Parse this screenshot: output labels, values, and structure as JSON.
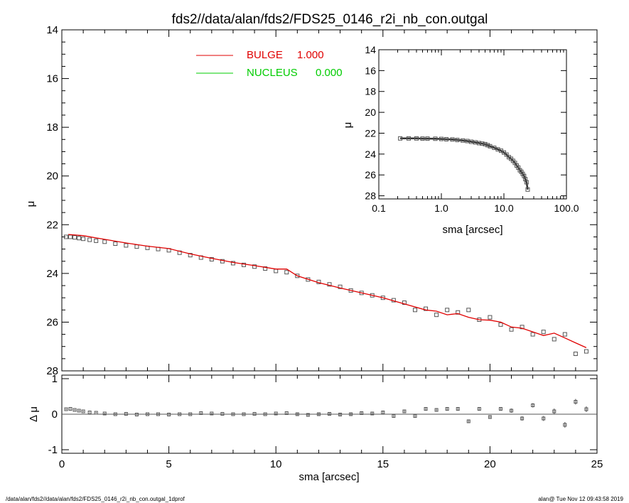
{
  "title": "fds2//data/alan/fds2/FDS25_0146_r2i_nb_con.outgal",
  "footer": {
    "left": "/data/alan/fds2//data/alan/fds2/FDS25_0146_r2i_nb_con.outgal_1dprof",
    "right": "alan@  Tue Nov 12 09:43:58 2019"
  },
  "colors": {
    "bulge": "#e00000",
    "nucleus": "#00cc00",
    "data": "#555555",
    "axis": "#000000"
  },
  "chart_data": [
    {
      "type": "scatter",
      "role": "main-profile",
      "xlim": [
        0,
        25
      ],
      "ylim": [
        28,
        14
      ],
      "ylabel": "μ",
      "xticks": [
        0,
        5,
        10,
        15,
        20,
        25
      ],
      "xtick_labels": [
        "0",
        "5",
        "10",
        "15",
        "20",
        "25"
      ],
      "yticks": [
        14,
        16,
        18,
        20,
        22,
        24,
        26,
        28
      ],
      "ytick_labels": [
        "14",
        "16",
        "18",
        "20",
        "22",
        "24",
        "26",
        "28"
      ],
      "legend": [
        {
          "name": "BULGE",
          "value": "1.000",
          "color": "#e00000"
        },
        {
          "name": "NUCLEUS",
          "value": "0.000",
          "color": "#00cc00"
        }
      ],
      "legend_position": "top-left",
      "series": [
        {
          "name": "data",
          "x": [
            0.2,
            0.4,
            0.6,
            0.8,
            1.0,
            1.3,
            1.6,
            2.0,
            2.5,
            3.0,
            3.5,
            4.0,
            4.5,
            5.0,
            5.5,
            6.0,
            6.5,
            7.0,
            7.5,
            8.0,
            8.5,
            9.0,
            9.5,
            10.0,
            10.5,
            11.0,
            11.5,
            12.0,
            12.5,
            13.0,
            13.5,
            14.0,
            14.5,
            15.0,
            15.5,
            16.0,
            16.5,
            17.0,
            17.5,
            18.0,
            18.5,
            19.0,
            19.5,
            20.0,
            20.5,
            21.0,
            21.5,
            22.0,
            22.5,
            23.0,
            23.5,
            24.0,
            24.5
          ],
          "y": [
            22.5,
            22.5,
            22.52,
            22.55,
            22.58,
            22.62,
            22.66,
            22.7,
            22.78,
            22.85,
            22.9,
            22.95,
            23.0,
            23.05,
            23.15,
            23.25,
            23.35,
            23.42,
            23.5,
            23.58,
            23.65,
            23.72,
            23.8,
            23.9,
            23.95,
            24.1,
            24.25,
            24.35,
            24.45,
            24.55,
            24.7,
            24.8,
            24.9,
            25.0,
            25.1,
            25.2,
            25.5,
            25.45,
            25.7,
            25.5,
            25.6,
            25.5,
            25.9,
            25.8,
            26.1,
            26.3,
            26.2,
            26.5,
            26.4,
            26.7,
            26.5,
            27.3,
            27.2
          ]
        },
        {
          "name": "BULGE",
          "x": [
            0.3,
            1.0,
            2.0,
            3.0,
            4.0,
            5.0,
            6.0,
            7.0,
            8.0,
            9.0,
            10.0,
            10.5,
            11.0,
            12.0,
            13.0,
            14.0,
            15.0,
            16.0,
            17.0,
            17.5,
            18.0,
            18.5,
            19.0,
            19.5,
            20.0,
            20.5,
            21.0,
            21.5,
            22.0,
            22.5,
            23.0,
            23.5,
            24.0,
            24.5
          ],
          "y": [
            22.4,
            22.45,
            22.6,
            22.75,
            22.88,
            22.98,
            23.2,
            23.38,
            23.55,
            23.68,
            23.82,
            23.82,
            24.1,
            24.38,
            24.6,
            24.8,
            25.0,
            25.25,
            25.5,
            25.55,
            25.7,
            25.65,
            25.8,
            25.9,
            25.92,
            26.0,
            26.2,
            26.25,
            26.4,
            26.55,
            26.45,
            26.65,
            26.85,
            27.05
          ]
        }
      ]
    },
    {
      "type": "scatter",
      "role": "residuals",
      "xlim": [
        0,
        25
      ],
      "ylim": [
        -1.1,
        1.1
      ],
      "xlabel": "sma [arcsec]",
      "ylabel": "Δ μ",
      "yticks": [
        -1,
        0,
        1
      ],
      "ytick_labels": [
        "-1",
        "0",
        "1"
      ],
      "series": [
        {
          "name": "residuals",
          "x": [
            0.2,
            0.4,
            0.6,
            0.8,
            1.0,
            1.3,
            1.6,
            2.0,
            2.5,
            3.0,
            3.5,
            4.0,
            4.5,
            5.0,
            5.5,
            6.0,
            6.5,
            7.0,
            7.5,
            8.0,
            8.5,
            9.0,
            9.5,
            10.0,
            10.5,
            11.0,
            11.5,
            12.0,
            12.5,
            13.0,
            13.5,
            14.0,
            14.5,
            15.0,
            15.5,
            16.0,
            16.5,
            17.0,
            17.5,
            18.0,
            18.5,
            19.0,
            19.5,
            20.0,
            20.5,
            21.0,
            21.5,
            22.0,
            22.5,
            23.0,
            23.5,
            24.0,
            24.5
          ],
          "y": [
            0.14,
            0.15,
            0.12,
            0.1,
            0.08,
            0.05,
            0.04,
            0.02,
            0.0,
            0.01,
            -0.01,
            0.0,
            0.0,
            -0.01,
            0.0,
            0.0,
            0.03,
            0.02,
            0.01,
            0.0,
            0.0,
            0.01,
            0.0,
            0.02,
            0.03,
            0.0,
            -0.02,
            0.0,
            0.01,
            -0.01,
            0.0,
            0.03,
            0.02,
            0.05,
            -0.05,
            0.08,
            -0.05,
            0.15,
            0.12,
            0.15,
            0.15,
            -0.2,
            0.15,
            -0.08,
            0.15,
            0.1,
            -0.12,
            0.25,
            -0.12,
            0.08,
            -0.3,
            0.35,
            0.14
          ],
          "err": [
            0.02,
            0.02,
            0.02,
            0.02,
            0.02,
            0.02,
            0.02,
            0.02,
            0.02,
            0.02,
            0.02,
            0.02,
            0.02,
            0.02,
            0.02,
            0.02,
            0.02,
            0.02,
            0.02,
            0.02,
            0.02,
            0.02,
            0.02,
            0.02,
            0.02,
            0.03,
            0.03,
            0.03,
            0.03,
            0.03,
            0.03,
            0.03,
            0.03,
            0.03,
            0.04,
            0.04,
            0.04,
            0.04,
            0.04,
            0.05,
            0.05,
            0.05,
            0.05,
            0.05,
            0.05,
            0.06,
            0.06,
            0.06,
            0.07,
            0.08,
            0.08,
            0.08,
            0.08
          ]
        }
      ]
    },
    {
      "type": "scatter",
      "role": "inset-log-profile",
      "xscale": "log",
      "xlim": [
        0.1,
        100
      ],
      "ylim": [
        28.3,
        14
      ],
      "xlabel": "sma [arcsec]",
      "ylabel": "μ",
      "xticks": [
        0.1,
        1,
        10,
        100
      ],
      "xtick_labels": [
        "0.1",
        "1.0",
        "10.0",
        "100.0"
      ],
      "yticks": [
        14,
        16,
        18,
        20,
        22,
        24,
        26,
        28
      ],
      "ytick_labels": [
        "14",
        "16",
        "18",
        "20",
        "22",
        "24",
        "26",
        "28"
      ],
      "series": [
        {
          "name": "data",
          "x": [
            0.22,
            0.3,
            0.4,
            0.5,
            0.6,
            0.8,
            1.0,
            1.2,
            1.5,
            1.8,
            2.2,
            2.6,
            3.0,
            3.5,
            4.0,
            4.5,
            5.0,
            5.5,
            6.0,
            7.0,
            8.0,
            9.0,
            10.0,
            11.0,
            12.0,
            13.0,
            14.0,
            15.0,
            16.0,
            17.0,
            18.0,
            19.0,
            20.0,
            21.0,
            22.0,
            23.0,
            24.0
          ],
          "y": [
            22.5,
            22.5,
            22.5,
            22.52,
            22.52,
            22.53,
            22.55,
            22.58,
            22.6,
            22.65,
            22.7,
            22.75,
            22.82,
            22.88,
            22.95,
            23.0,
            23.05,
            23.15,
            23.25,
            23.4,
            23.55,
            23.68,
            23.85,
            24.05,
            24.3,
            24.45,
            24.65,
            24.85,
            25.1,
            25.3,
            25.55,
            25.7,
            25.9,
            26.1,
            26.4,
            26.7,
            27.4
          ]
        }
      ]
    }
  ]
}
